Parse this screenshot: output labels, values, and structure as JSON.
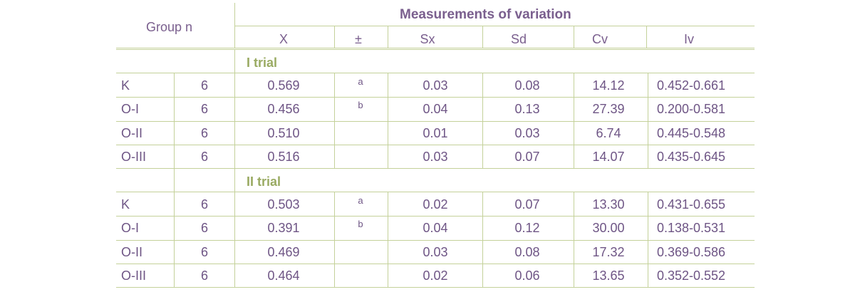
{
  "header": {
    "group_label": "Group n",
    "measurements_title": "Measurements of variation",
    "columns": [
      "X",
      "±",
      "Sx",
      "Sd",
      "Cv",
      "Iv"
    ]
  },
  "trials": [
    {
      "label": "I trial",
      "rows": [
        {
          "group": "K",
          "n": "6",
          "x": "0.569",
          "pm": "a",
          "sx": "0.03",
          "sd": "0.08",
          "cv": "14.12",
          "iv": "0.452-0.661"
        },
        {
          "group": "O-I",
          "n": "6",
          "x": "0.456",
          "pm": "b",
          "sx": "0.04",
          "sd": "0.13",
          "cv": "27.39",
          "iv": "0.200-0.581"
        },
        {
          "group": "O-II",
          "n": "6",
          "x": "0.510",
          "pm": "",
          "sx": "0.01",
          "sd": "0.03",
          "cv": "6.74",
          "iv": "0.445-0.548"
        },
        {
          "group": "O-III",
          "n": "6",
          "x": "0.516",
          "pm": "",
          "sx": "0.03",
          "sd": "0.07",
          "cv": "14.07",
          "iv": "0.435-0.645"
        }
      ]
    },
    {
      "label": "II trial",
      "rows": [
        {
          "group": "K",
          "n": "6",
          "x": "0.503",
          "pm": "a",
          "sx": "0.02",
          "sd": "0.07",
          "cv": "13.30",
          "iv": "0.431-0.655"
        },
        {
          "group": "O-I",
          "n": "6",
          "x": "0.391",
          "pm": "b",
          "sx": "0.04",
          "sd": "0.12",
          "cv": "30.00",
          "iv": "0.138-0.531"
        },
        {
          "group": "O-II",
          "n": "6",
          "x": "0.469",
          "pm": "",
          "sx": "0.03",
          "sd": "0.08",
          "cv": "17.32",
          "iv": "0.369-0.586"
        },
        {
          "group": "O-III",
          "n": "6",
          "x": "0.464",
          "pm": "",
          "sx": "0.02",
          "sd": "0.06",
          "cv": "13.65",
          "iv": "0.352-0.552"
        }
      ]
    }
  ]
}
